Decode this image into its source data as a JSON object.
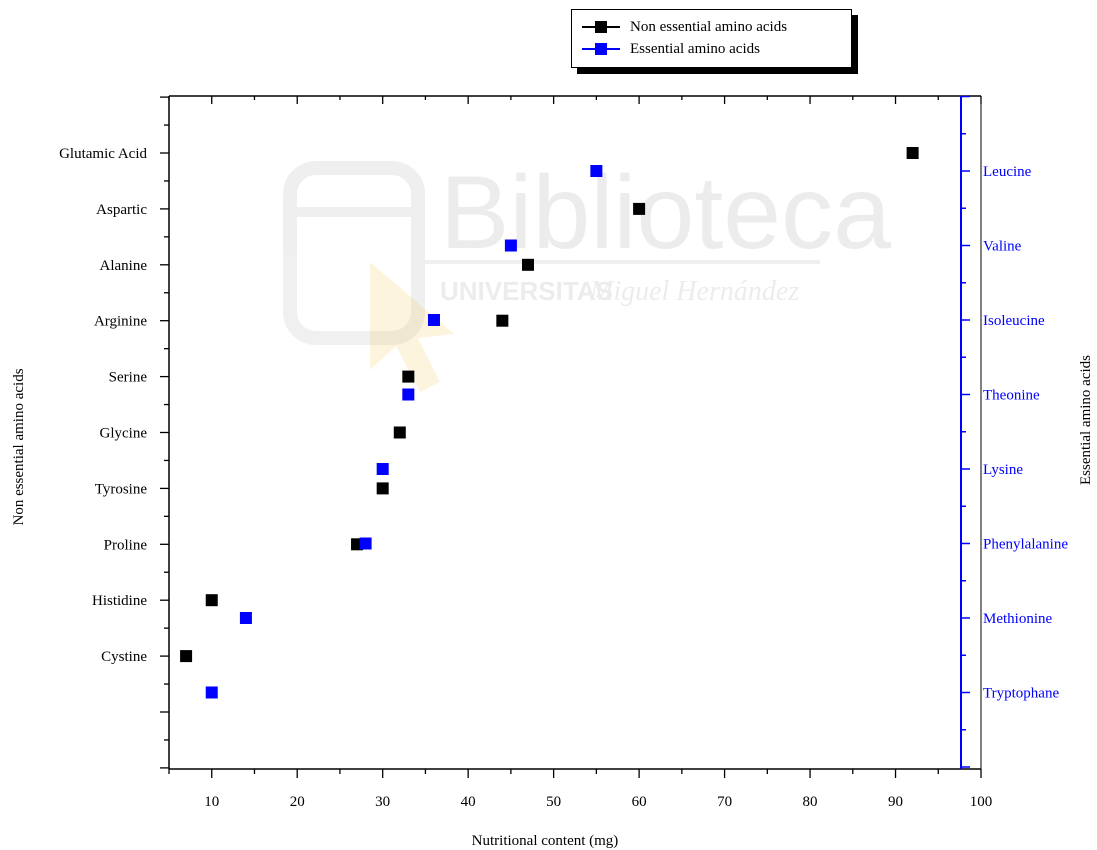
{
  "chart_data": {
    "type": "scatter",
    "xlabel": "Nutritional content (mg)",
    "ylabel_left": "Non essential amino acids",
    "ylabel_right": "Essential amino acids",
    "xlim": [
      5,
      100
    ],
    "xticks": [
      10,
      20,
      30,
      40,
      50,
      60,
      70,
      80,
      90,
      100
    ],
    "legend_position": "top-right, above plot",
    "series": [
      {
        "name": "Non essential amino acids",
        "color": "#000000",
        "marker": "square",
        "axis": "left",
        "categories": [
          "Glutamic Acid",
          "Aspartic",
          "Alanine",
          "Arginine",
          "Serine",
          "Glycine",
          "Tyrosine",
          "Proline",
          "Histidine",
          "Cystine"
        ],
        "values": [
          92,
          60,
          47,
          44,
          33,
          32,
          30,
          27,
          10,
          7
        ]
      },
      {
        "name": "Essential amino acids",
        "color": "#0000ff",
        "marker": "square",
        "axis": "right",
        "categories": [
          "Leucine",
          "Valine",
          "Isoleucine",
          "Theonine",
          "Lysine",
          "Phenylalanine",
          "Methionine",
          "Tryptophane"
        ],
        "values": [
          55,
          45,
          36,
          33,
          30,
          28,
          14,
          10
        ]
      }
    ]
  },
  "watermark": {
    "main": "Biblioteca",
    "sub_bold": "UNIVERSITAS",
    "sub_italic": "Miguel Hernández"
  }
}
